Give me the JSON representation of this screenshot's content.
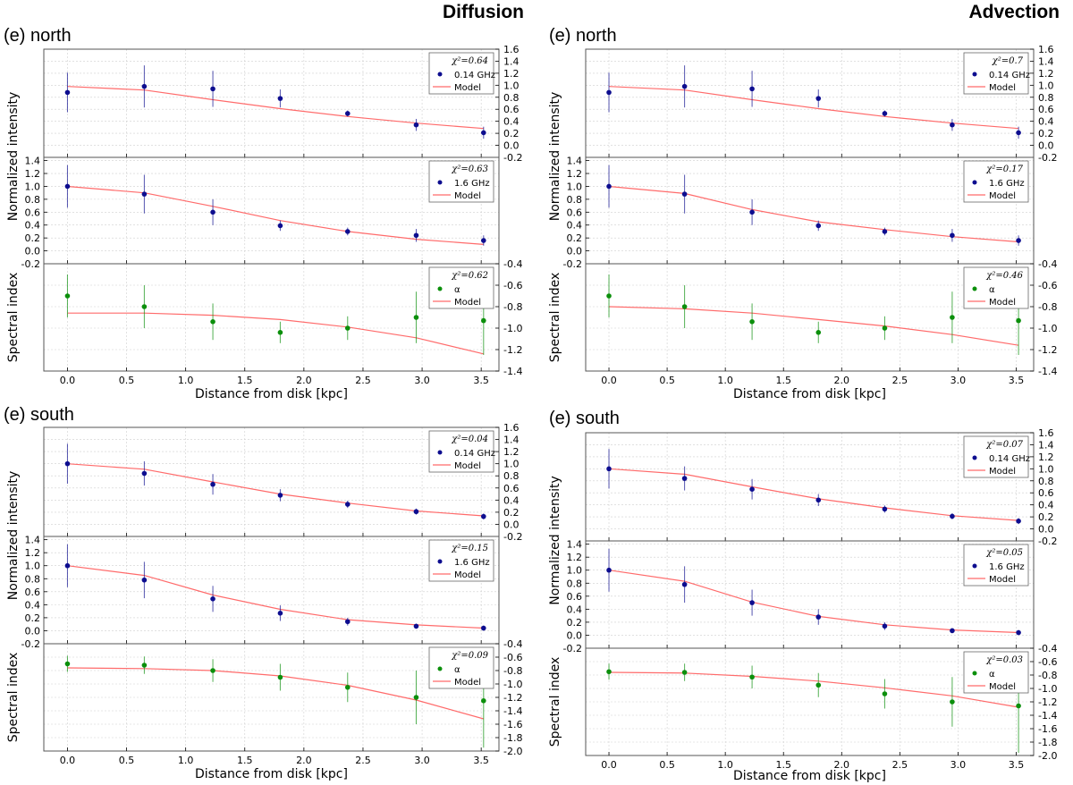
{
  "headers": {
    "left": "Diffusion",
    "right": "Advection"
  },
  "x_axis_label": "Distance from disk [kpc]",
  "x_ticks": [
    0.0,
    0.5,
    1.0,
    1.5,
    2.0,
    2.5,
    3.0,
    3.5
  ],
  "x_range": [
    -0.2,
    3.65
  ],
  "y_label_intensity": "Normalized intensity",
  "y_label_spectral": "Spectral index",
  "legend_model": "Model",
  "colors": {
    "model": "#ff6b6b",
    "intensity": "#0d0d8f",
    "spectral": "#0b8f0b",
    "grid": "#cfcfcf"
  },
  "chart_data": [
    {
      "panel": "diffusion-north",
      "title": "(e) north",
      "type": "line",
      "x": [
        0.0,
        0.65,
        1.23,
        1.8,
        2.37,
        2.95,
        3.52
      ],
      "subplots": [
        {
          "kind": "intensity",
          "label": "0.14 GHz",
          "chi2": "χ²=0.64",
          "ylim": [
            -0.2,
            1.6
          ],
          "y_ticks": [
            -0.2,
            0.0,
            0.2,
            0.4,
            0.6,
            0.8,
            1.0,
            1.2,
            1.4,
            1.6
          ],
          "ticks_side": "right",
          "data": [
            0.88,
            0.98,
            0.94,
            0.78,
            0.53,
            0.34,
            0.21
          ],
          "err": [
            0.33,
            0.35,
            0.3,
            0.15,
            0.05,
            0.1,
            0.1
          ],
          "model": [
            0.98,
            0.92,
            0.76,
            0.61,
            0.48,
            0.37,
            0.28
          ]
        },
        {
          "kind": "intensity",
          "label": "1.6 GHz",
          "chi2": "χ²=0.63",
          "ylim": [
            -0.2,
            1.45
          ],
          "y_ticks": [
            -0.2,
            0.0,
            0.2,
            0.4,
            0.6,
            0.8,
            1.0,
            1.2,
            1.4
          ],
          "ticks_side": "left",
          "data": [
            1.0,
            0.88,
            0.6,
            0.39,
            0.3,
            0.24,
            0.16
          ],
          "err": [
            0.33,
            0.3,
            0.2,
            0.08,
            0.06,
            0.1,
            0.08
          ],
          "model": [
            1.0,
            0.9,
            0.69,
            0.47,
            0.3,
            0.18,
            0.1
          ]
        },
        {
          "kind": "spectral",
          "label": "α",
          "chi2": "χ²=0.62",
          "ylim": [
            -1.4,
            -0.4
          ],
          "y_ticks": [
            -1.4,
            -1.2,
            -1.0,
            -0.8,
            -0.6,
            -0.4
          ],
          "ticks_side": "right",
          "data": [
            -0.7,
            -0.8,
            -0.94,
            -1.04,
            -1.0,
            -0.9,
            -0.93
          ],
          "err": [
            0.2,
            0.2,
            0.17,
            0.1,
            0.11,
            0.24,
            0.32
          ],
          "model": [
            -0.86,
            -0.86,
            -0.88,
            -0.92,
            -0.99,
            -1.09,
            -1.24
          ]
        }
      ]
    },
    {
      "panel": "advection-north",
      "title": "(e) north",
      "type": "line",
      "x": [
        0.0,
        0.65,
        1.23,
        1.8,
        2.37,
        2.95,
        3.52
      ],
      "subplots": [
        {
          "kind": "intensity",
          "label": "0.14 GHz",
          "chi2": "χ²=0.7",
          "ylim": [
            -0.2,
            1.6
          ],
          "y_ticks": [
            -0.2,
            0.0,
            0.2,
            0.4,
            0.6,
            0.8,
            1.0,
            1.2,
            1.4,
            1.6
          ],
          "ticks_side": "right",
          "data": [
            0.88,
            0.98,
            0.94,
            0.78,
            0.53,
            0.34,
            0.21
          ],
          "err": [
            0.33,
            0.35,
            0.3,
            0.15,
            0.05,
            0.1,
            0.1
          ],
          "model": [
            0.98,
            0.92,
            0.76,
            0.61,
            0.48,
            0.37,
            0.28
          ]
        },
        {
          "kind": "intensity",
          "label": "1.6 GHz",
          "chi2": "χ²=0.17",
          "ylim": [
            -0.2,
            1.45
          ],
          "y_ticks": [
            -0.2,
            0.0,
            0.2,
            0.4,
            0.6,
            0.8,
            1.0,
            1.2,
            1.4
          ],
          "ticks_side": "left",
          "data": [
            1.0,
            0.88,
            0.6,
            0.39,
            0.3,
            0.24,
            0.16
          ],
          "err": [
            0.33,
            0.3,
            0.2,
            0.08,
            0.06,
            0.1,
            0.08
          ],
          "model": [
            1.0,
            0.89,
            0.64,
            0.45,
            0.33,
            0.22,
            0.14
          ]
        },
        {
          "kind": "spectral",
          "label": "α",
          "chi2": "χ²=0.46",
          "ylim": [
            -1.4,
            -0.4
          ],
          "y_ticks": [
            -1.4,
            -1.2,
            -1.0,
            -0.8,
            -0.6,
            -0.4
          ],
          "ticks_side": "right",
          "data": [
            -0.7,
            -0.8,
            -0.94,
            -1.04,
            -1.0,
            -0.9,
            -0.93
          ],
          "err": [
            0.2,
            0.2,
            0.17,
            0.1,
            0.11,
            0.24,
            0.32
          ],
          "model": [
            -0.8,
            -0.82,
            -0.86,
            -0.92,
            -0.98,
            -1.06,
            -1.16
          ]
        }
      ]
    },
    {
      "panel": "diffusion-south",
      "title": "(e) south",
      "type": "line",
      "x": [
        0.0,
        0.65,
        1.23,
        1.8,
        2.37,
        2.95,
        3.52
      ],
      "subplots": [
        {
          "kind": "intensity",
          "label": "0.14 GHz",
          "chi2": "χ²=0.04",
          "ylim": [
            -0.2,
            1.6
          ],
          "y_ticks": [
            -0.2,
            0.0,
            0.2,
            0.4,
            0.6,
            0.8,
            1.0,
            1.2,
            1.4,
            1.6
          ],
          "ticks_side": "right",
          "data": [
            1.0,
            0.84,
            0.66,
            0.48,
            0.33,
            0.21,
            0.13
          ],
          "err": [
            0.33,
            0.2,
            0.17,
            0.1,
            0.06,
            0.05,
            0.05
          ],
          "model": [
            1.0,
            0.91,
            0.7,
            0.5,
            0.35,
            0.22,
            0.14
          ]
        },
        {
          "kind": "intensity",
          "label": "1.6 GHz",
          "chi2": "χ²=0.15",
          "ylim": [
            -0.2,
            1.45
          ],
          "y_ticks": [
            -0.2,
            0.0,
            0.2,
            0.4,
            0.6,
            0.8,
            1.0,
            1.2,
            1.4
          ],
          "ticks_side": "left",
          "data": [
            1.0,
            0.78,
            0.49,
            0.27,
            0.14,
            0.07,
            0.04
          ],
          "err": [
            0.33,
            0.28,
            0.2,
            0.12,
            0.06,
            0.04,
            0.04
          ],
          "model": [
            1.0,
            0.85,
            0.55,
            0.33,
            0.17,
            0.09,
            0.04
          ]
        },
        {
          "kind": "spectral",
          "label": "α",
          "chi2": "χ²=0.09",
          "ylim": [
            -2.0,
            -0.4
          ],
          "y_ticks": [
            -2.0,
            -1.8,
            -1.6,
            -1.4,
            -1.2,
            -1.0,
            -0.8,
            -0.6,
            -0.4
          ],
          "ticks_side": "right",
          "data": [
            -0.7,
            -0.72,
            -0.8,
            -0.9,
            -1.05,
            -1.2,
            -1.25
          ],
          "err": [
            0.12,
            0.13,
            0.17,
            0.2,
            0.22,
            0.4,
            0.7
          ],
          "model": [
            -0.76,
            -0.77,
            -0.8,
            -0.88,
            -1.02,
            -1.24,
            -1.52
          ]
        }
      ]
    },
    {
      "panel": "advection-south",
      "title": "(e) south",
      "type": "line",
      "x": [
        0.0,
        0.65,
        1.23,
        1.8,
        2.37,
        2.95,
        3.52
      ],
      "subplots": [
        {
          "kind": "intensity",
          "label": "0.14 GHz",
          "chi2": "χ²=0.07",
          "ylim": [
            -0.2,
            1.6
          ],
          "y_ticks": [
            -0.2,
            0.0,
            0.2,
            0.4,
            0.6,
            0.8,
            1.0,
            1.2,
            1.4,
            1.6
          ],
          "ticks_side": "right",
          "data": [
            1.0,
            0.84,
            0.66,
            0.48,
            0.33,
            0.21,
            0.13
          ],
          "err": [
            0.33,
            0.2,
            0.17,
            0.1,
            0.06,
            0.05,
            0.05
          ],
          "model": [
            1.0,
            0.91,
            0.7,
            0.5,
            0.35,
            0.22,
            0.14
          ]
        },
        {
          "kind": "intensity",
          "label": "1.6 GHz",
          "chi2": "χ²=0.05",
          "ylim": [
            -0.2,
            1.45
          ],
          "y_ticks": [
            -0.2,
            0.0,
            0.2,
            0.4,
            0.6,
            0.8,
            1.0,
            1.2,
            1.4
          ],
          "ticks_side": "left",
          "data": [
            1.0,
            0.78,
            0.5,
            0.28,
            0.14,
            0.07,
            0.04
          ],
          "err": [
            0.33,
            0.28,
            0.2,
            0.12,
            0.06,
            0.04,
            0.04
          ],
          "model": [
            1.0,
            0.83,
            0.51,
            0.29,
            0.16,
            0.08,
            0.04
          ]
        },
        {
          "kind": "spectral",
          "label": "α",
          "chi2": "χ²=0.03",
          "ylim": [
            -2.0,
            -0.4
          ],
          "y_ticks": [
            -2.0,
            -1.8,
            -1.6,
            -1.4,
            -1.2,
            -1.0,
            -0.8,
            -0.6,
            -0.4
          ],
          "ticks_side": "right",
          "data": [
            -0.75,
            -0.76,
            -0.83,
            -0.95,
            -1.08,
            -1.2,
            -1.26
          ],
          "err": [
            0.12,
            0.13,
            0.17,
            0.18,
            0.22,
            0.37,
            0.7
          ],
          "model": [
            -0.76,
            -0.77,
            -0.82,
            -0.89,
            -0.99,
            -1.11,
            -1.28
          ]
        }
      ]
    }
  ]
}
